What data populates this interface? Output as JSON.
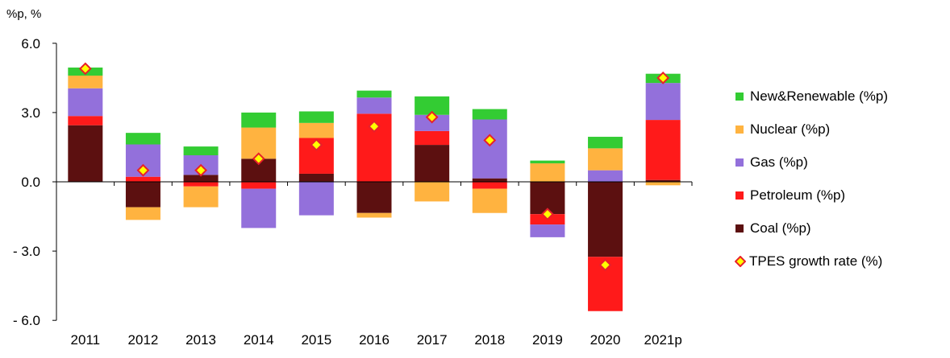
{
  "chart_data": {
    "type": "bar",
    "stacked": true,
    "unit_label": "%p, %",
    "categories": [
      "2011",
      "2012",
      "2013",
      "2014",
      "2015",
      "2016",
      "2017",
      "2018",
      "2019",
      "2020",
      "2021p"
    ],
    "ylim": [
      -6.0,
      6.0
    ],
    "yticks": [
      6.0,
      3.0,
      0.0,
      -3.0,
      -6.0
    ],
    "ytick_labels": [
      "6.0",
      "3.0",
      "0.0",
      "- 3.0",
      "- 6.0"
    ],
    "grid": false,
    "legend_position": "right",
    "series": [
      {
        "name": "Coal (%p)",
        "color": "#5c1010",
        "values": [
          2.45,
          -1.1,
          0.3,
          1.0,
          0.35,
          -1.35,
          1.6,
          0.15,
          -1.4,
          -3.25,
          0.08
        ]
      },
      {
        "name": "Petroleum (%p)",
        "color": "#ff1a1a",
        "values": [
          0.4,
          0.22,
          -0.2,
          -0.3,
          1.55,
          2.95,
          0.6,
          -0.3,
          -0.45,
          -2.35,
          2.6
        ]
      },
      {
        "name": "Gas (%p)",
        "color": "#9370db",
        "values": [
          1.2,
          1.4,
          0.85,
          -1.7,
          -1.45,
          0.7,
          0.7,
          2.55,
          -0.55,
          0.5,
          1.6
        ]
      },
      {
        "name": "Nuclear (%p)",
        "color": "#ffb340",
        "values": [
          0.55,
          -0.55,
          -0.9,
          1.35,
          0.65,
          -0.2,
          -0.85,
          -1.05,
          0.8,
          0.95,
          -0.15
        ]
      },
      {
        "name": "New&Renewable (%p)",
        "color": "#33cc33",
        "values": [
          0.35,
          0.5,
          0.38,
          0.65,
          0.5,
          0.3,
          0.8,
          0.45,
          0.12,
          0.5,
          0.4
        ]
      }
    ],
    "line": {
      "name": "TPES growth rate (%)",
      "fill": "#ffff00",
      "stroke": "#e8202a",
      "values": [
        4.9,
        0.5,
        0.5,
        1.0,
        1.6,
        2.4,
        2.8,
        1.8,
        -1.4,
        -3.6,
        4.5
      ]
    },
    "legend_order": [
      "New&Renewable (%p)",
      "Nuclear (%p)",
      "Gas (%p)",
      "Petroleum (%p)",
      "Coal (%p)",
      "TPES growth rate (%)"
    ]
  }
}
